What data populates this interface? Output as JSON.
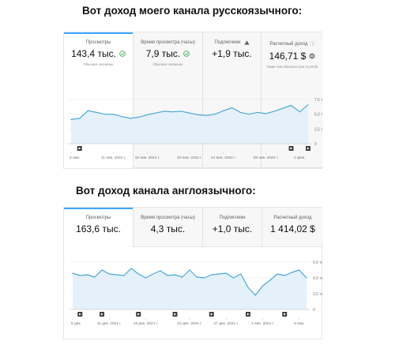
{
  "sections": [
    {
      "heading": "Вот доход моего канала русскоязычного:",
      "cards": [
        {
          "label": "Просмотры",
          "value": "143,4 тыс.",
          "status_icon": "check-circle-icon",
          "note": "Обычное значение",
          "active": true
        },
        {
          "label": "Время просмотра (часы)",
          "value": "7,9 тыс.",
          "status_icon": "check-circle-icon",
          "note": "Обычное значение",
          "active": false
        },
        {
          "label": "Подписчики",
          "label_icon": "warning-triangle-icon",
          "value": "+1,9 тыс.",
          "note": "",
          "active": false
        },
        {
          "label": "Расчетный доход",
          "label_icon": "info-icon",
          "value": "146,71 $",
          "status_icon": "minus-circle-icon",
          "note": "Ниже чем обычного (на 13,29 $)",
          "active": false
        }
      ],
      "chart_data": {
        "type": "line",
        "x": [
          "6 янв.",
          "7 янв.",
          "8 янв.",
          "9 янв.",
          "10 янв.",
          "11 янв.",
          "12 янв.",
          "13 янв.",
          "14 янв.",
          "15 янв.",
          "16 янв.",
          "17 янв.",
          "18 янв.",
          "19 янв.",
          "20 янв.",
          "21 янв.",
          "22 янв.",
          "23 янв.",
          "24 янв.",
          "25 янв.",
          "26 янв.",
          "27 янв.",
          "28 янв.",
          "29 янв.",
          "30 янв.",
          "31 янв.",
          "1 фев.",
          "2 фев.",
          "3 фев."
        ],
        "series": [
          {
            "values": [
              4.1,
              4.3,
              5.6,
              5.3,
              5.0,
              5.0,
              4.6,
              4.3,
              4.5,
              4.9,
              5.2,
              5.5,
              5.4,
              5.5,
              5.2,
              4.9,
              4.8,
              5.0,
              5.6,
              6.1,
              5.3,
              5.0,
              5.3,
              5.1,
              5.5,
              6.0,
              6.5,
              5.4,
              6.6
            ]
          }
        ],
        "ylim": [
          0,
          7.5
        ],
        "yticks": [
          "0",
          "2,5 тыс.",
          "5,0 тыс.",
          "7,5 тыс."
        ],
        "xtick_labels": [
          "6 янв.",
          "11 янв. 2022 г.",
          "15 янв. 2022 г.",
          "20 янв. 2022 г.",
          "24 янв. 2022 г.",
          "29 янв. 2022 г.",
          "2 фев."
        ],
        "xtick_index": [
          0,
          5,
          9,
          14,
          18,
          23,
          27
        ],
        "marker_index": [
          1,
          26,
          28
        ],
        "grid": true
      }
    },
    {
      "heading": "Вот доход канала англоязычного:",
      "cards": [
        {
          "label": "Просмотры",
          "value": "163,6 тыс.",
          "active": true
        },
        {
          "label": "Время просмотра (часы)",
          "value": "4,3 тыс.",
          "active": false
        },
        {
          "label": "Подписчики",
          "value": "+1,0 тыс.",
          "active": false
        },
        {
          "label": "Расчетный доход",
          "value": "1 414,02 $",
          "active": false
        }
      ],
      "chart_data": {
        "type": "line",
        "x": [
          "6 дек.",
          "7 дек.",
          "8 дек.",
          "9 дек.",
          "10 дек.",
          "11 дек.",
          "12 дек.",
          "13 дек.",
          "14 дек.",
          "15 дек.",
          "16 дек.",
          "17 дек.",
          "18 дек.",
          "19 дек.",
          "20 дек.",
          "21 дек.",
          "22 дек.",
          "23 дек.",
          "24 дек.",
          "25 дек.",
          "26 дек.",
          "27 дек.",
          "28 дек.",
          "29 дек.",
          "30 дек.",
          "31 дек.",
          "1 янв.",
          "2 янв.",
          "3 янв.",
          "4 янв.",
          "5 янв.",
          "6 янв.",
          "7 янв."
        ],
        "series": [
          {
            "values": [
              4.6,
              4.3,
              4.4,
              4.1,
              5.0,
              4.5,
              4.4,
              4.3,
              5.2,
              4.5,
              4.0,
              4.5,
              4.9,
              4.3,
              4.4,
              4.1,
              5.0,
              4.1,
              4.0,
              4.4,
              4.5,
              4.6,
              4.0,
              4.5,
              2.8,
              1.8,
              3.0,
              3.7,
              4.5,
              4.3,
              4.7,
              5.0,
              4.0
            ]
          }
        ],
        "ylim": [
          0,
          6.0
        ],
        "yticks": [
          "0",
          "2,0 тыс.",
          "4,0 тыс.",
          "6,0 тыс."
        ],
        "xtick_labels": [
          "6 дек.",
          "11 дек. 2021 г.",
          "16 дек. 2021 г.",
          "22 дек. 2021 г.",
          "27 дек. 2021 г.",
          "1 янв. 2022 г.",
          "6 янв."
        ],
        "xtick_index": [
          0,
          5,
          10,
          16,
          21,
          26,
          31
        ],
        "marker_index": [
          1,
          4,
          9,
          14,
          19,
          24,
          29
        ],
        "grid": true
      }
    }
  ],
  "colors": {
    "line": "#4aa8d8",
    "fill": "#e4f1fa",
    "accent": "#3ea6ff",
    "check": "#2ba640",
    "grid": "#e5e5e5",
    "marker": "#3c3c3c"
  }
}
